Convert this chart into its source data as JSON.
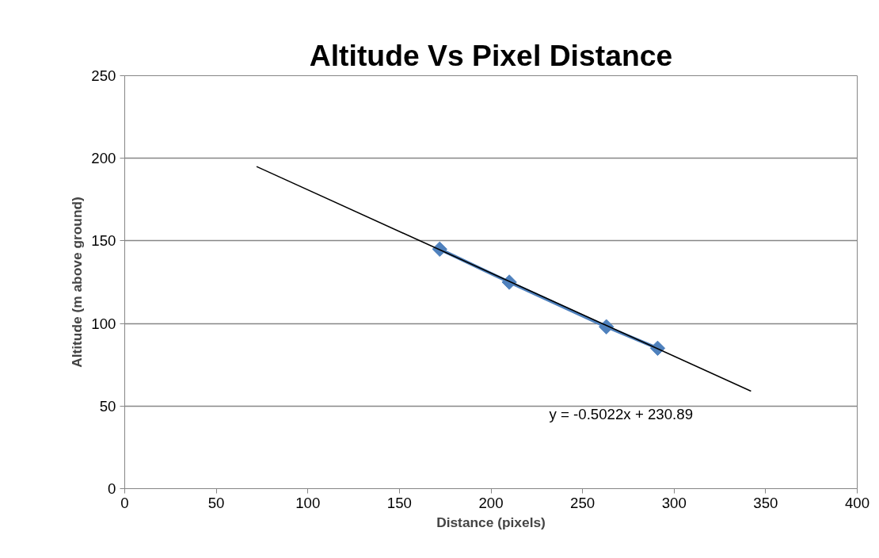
{
  "chart_data": {
    "type": "line",
    "title": "Altitude Vs Pixel Distance",
    "xlabel": "Distance (pixels)",
    "ylabel": "Altitude (m above ground)",
    "series": [
      {
        "color": "#4f81bd",
        "marker": "diamond",
        "x": [
          172,
          210,
          263,
          291
        ],
        "values": [
          145,
          125,
          98,
          85
        ]
      },
      {
        "color": "#000000",
        "marker": "none",
        "x": [
          72,
          342
        ],
        "values": [
          195,
          59
        ]
      }
    ],
    "annotations": [
      "y = -0.5022x + 230.89"
    ],
    "xlim": [
      0,
      400
    ],
    "xticks": [
      0,
      50,
      100,
      150,
      200,
      250,
      300,
      350,
      400
    ],
    "ylim": [
      0,
      250
    ],
    "yticks": [
      0,
      50,
      100,
      150,
      200,
      250
    ],
    "grid": "y"
  }
}
